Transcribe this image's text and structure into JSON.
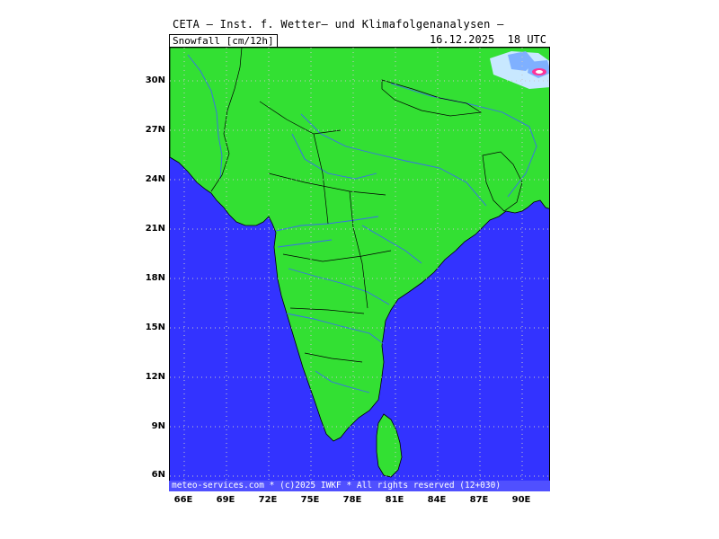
{
  "header": {
    "title": "CETA — Inst. f. Wetter— und Klimafolgenanalysen —",
    "parameter": "Snowfall [cm/12h]",
    "valid_time": "16.12.2025  18 UTC"
  },
  "footer": {
    "text": "meteo-services.com * (c)2025 IWKF * All rights reserved (12+030)"
  },
  "axes": {
    "lat_labels": [
      "30N",
      "27N",
      "24N",
      "21N",
      "18N",
      "15N",
      "12N",
      "9N",
      "6N"
    ],
    "lon_labels": [
      "66E",
      "69E",
      "72E",
      "75E",
      "78E",
      "81E",
      "84E",
      "87E",
      "90E"
    ]
  },
  "colors": {
    "land": "#33e033",
    "sea": "#3333ff",
    "rivers": "#3a6cf0",
    "borders": "#000000",
    "snow_light": "#c8e8ff",
    "snow_medium": "#7fb0ff",
    "snow_heavy": "#ff3399",
    "grid": "#c8c8c8"
  }
}
